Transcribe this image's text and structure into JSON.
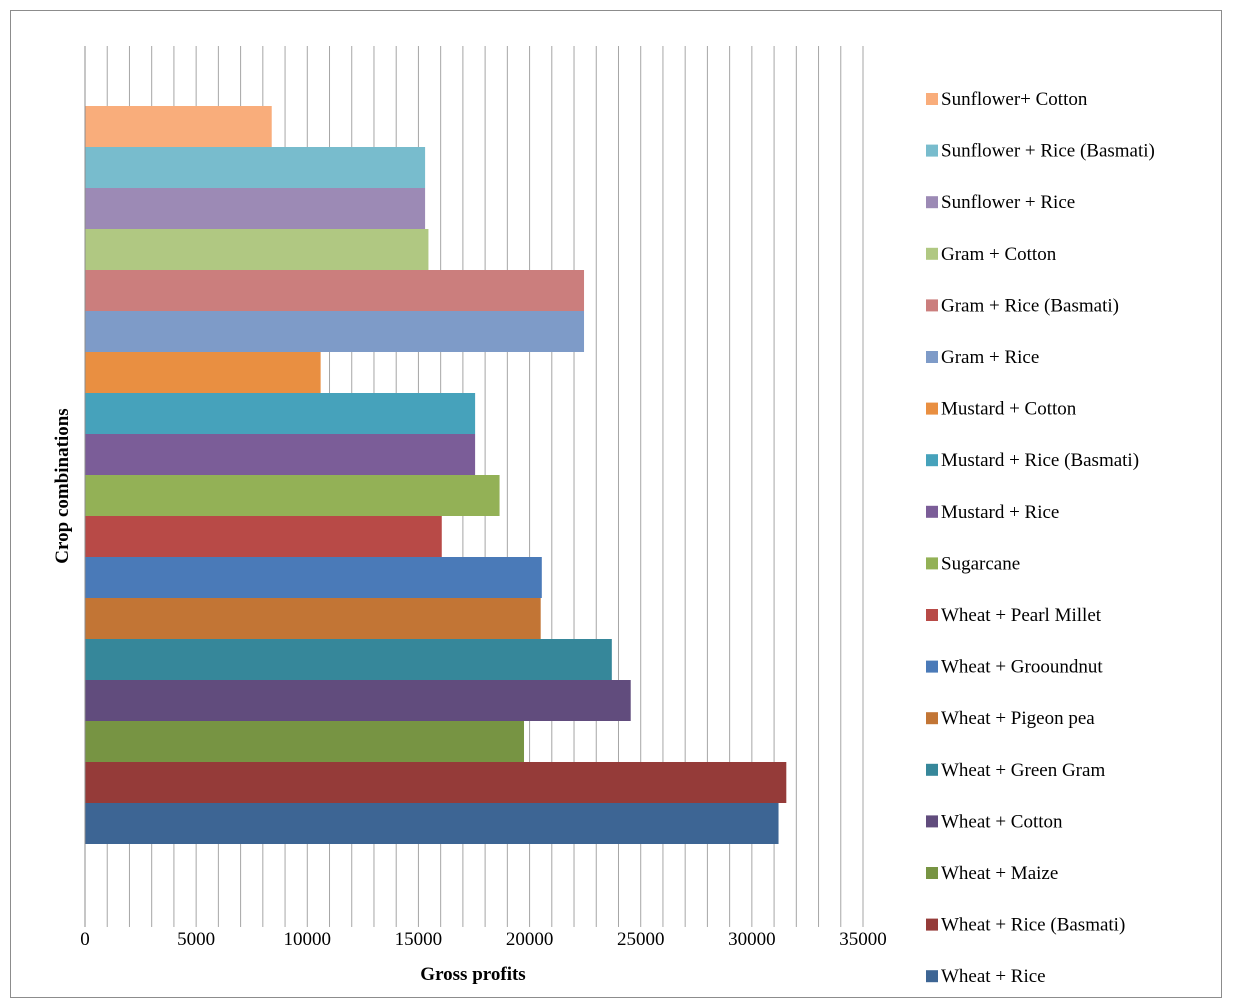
{
  "chart_data": {
    "type": "bar",
    "orientation": "horizontal",
    "xlabel": "Gross profits",
    "ylabel": "Crop combinations",
    "xlim": [
      0,
      35000
    ],
    "xticks": [
      0,
      5000,
      10000,
      15000,
      20000,
      25000,
      30000,
      35000
    ],
    "grid": true,
    "legend_position": "right",
    "bars": [
      {
        "name": "Wheat + Rice",
        "value": 31200,
        "color": "#3d6594"
      },
      {
        "name": "Wheat + Rice (Basmati)",
        "value": 31550,
        "color": "#953b39"
      },
      {
        "name": "Wheat + Maize",
        "value": 19750,
        "color": "#779443"
      },
      {
        "name": "Wheat + Cotton",
        "value": 24550,
        "color": "#614c7d"
      },
      {
        "name": "Wheat + Green Gram",
        "value": 23700,
        "color": "#36879a"
      },
      {
        "name": "Wheat + Pigeon pea",
        "value": 20500,
        "color": "#c27535"
      },
      {
        "name": "Wheat + Grooundnut",
        "value": 20550,
        "color": "#4a7ab8"
      },
      {
        "name": "Wheat + Pearl Millet",
        "value": 16050,
        "color": "#b84a47"
      },
      {
        "name": "Sugarcane",
        "value": 18650,
        "color": "#93b156"
      },
      {
        "name": "Mustard + Rice",
        "value": 17550,
        "color": "#7b5d98"
      },
      {
        "name": "Mustard + Rice (Basmati)",
        "value": 17550,
        "color": "#46a2bb"
      },
      {
        "name": "Mustard + Cotton",
        "value": 10600,
        "color": "#e98f41"
      },
      {
        "name": "Gram + Rice",
        "value": 22450,
        "color": "#7e9bc8"
      },
      {
        "name": "Gram + Rice (Basmati)",
        "value": 22450,
        "color": "#cb7e7d"
      },
      {
        "name": "Gram + Cotton",
        "value": 15450,
        "color": "#b0c882"
      },
      {
        "name": "Sunflower + Rice",
        "value": 15300,
        "color": "#9c8ab5"
      },
      {
        "name": "Sunflower + Rice (Basmati)",
        "value": 15300,
        "color": "#78bccd"
      },
      {
        "name": "Sunflower+ Cotton",
        "value": 8400,
        "color": "#f9ad7b"
      }
    ]
  }
}
